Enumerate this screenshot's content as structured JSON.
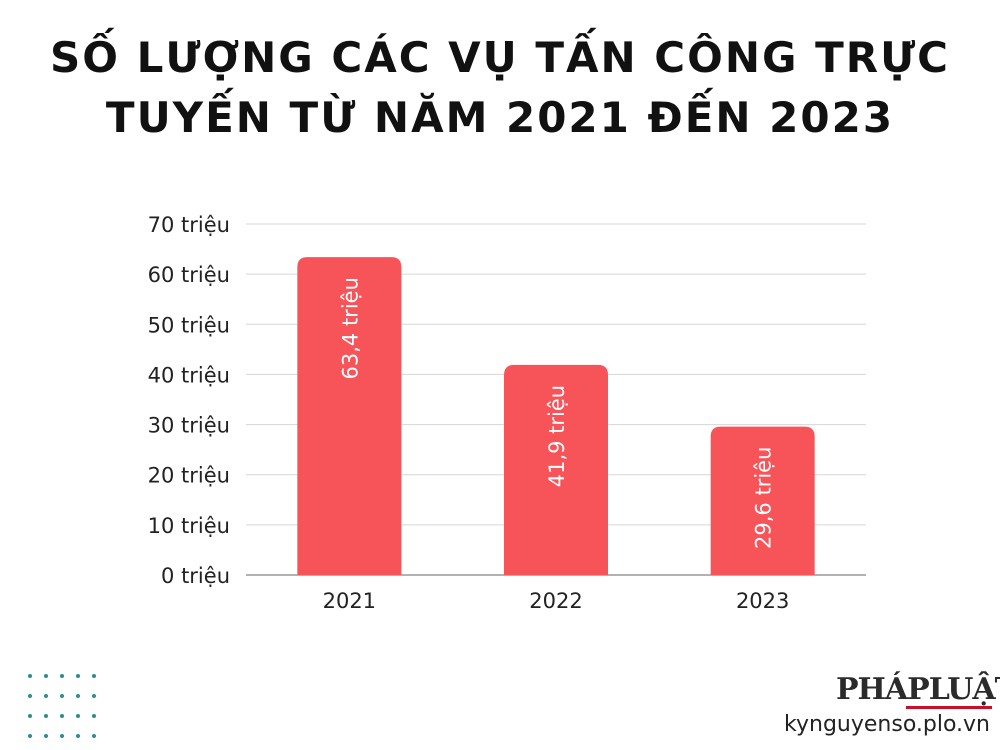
{
  "header": {
    "title_line1": "SỐ LƯỢNG CÁC VỤ TẤN CÔNG TRỰC",
    "title_line2": "TUYẾN TỪ NĂM 2021 ĐẾN 2023"
  },
  "chart_data": {
    "type": "bar",
    "title": "SỐ LƯỢNG CÁC VỤ TẤN CÔNG TRỰC TUYẾN TỪ NĂM 2021 ĐẾN 2023",
    "categories": [
      "2021",
      "2022",
      "2023"
    ],
    "values": [
      63.4,
      41.9,
      29.6
    ],
    "data_labels": [
      "63,4 triệu",
      "41,9 triệu",
      "29,6 triệu"
    ],
    "ylim": [
      0,
      70
    ],
    "yticks": [
      0,
      10,
      20,
      30,
      40,
      50,
      60,
      70
    ],
    "ytick_labels": [
      "0 triệu",
      "10 triệu",
      "20 triệu",
      "30 triệu",
      "40 triệu",
      "50 triệu",
      "60 triệu",
      "70 triệu"
    ],
    "xlabel": "",
    "ylabel": "",
    "grid": true,
    "colors": {
      "bar": "#f7545a",
      "grid": "#d6d6d6",
      "axis": "#999999",
      "text": "#222222",
      "label": "#ffffff"
    }
  },
  "footer": {
    "logo_text": "PHÁPLUẬT",
    "site": "kynguyenso.plo.vn",
    "dots_color": "#2a8f8f"
  }
}
